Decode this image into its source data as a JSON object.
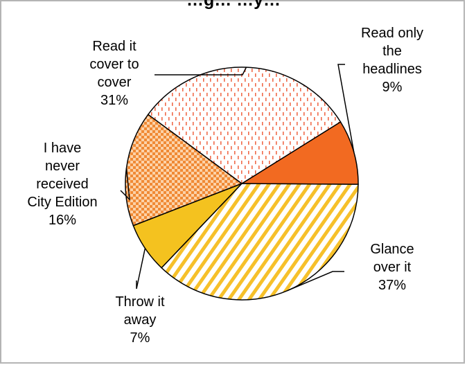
{
  "chart_data": {
    "type": "pie",
    "title": "…g…                                        …y…",
    "slices": [
      {
        "label": "Read only the headlines",
        "lines": [
          "Read only",
          "the",
          "headlines"
        ],
        "pct_text": "9%",
        "value": 9,
        "color": "#f26a21",
        "pattern": "solid"
      },
      {
        "label": "Glance over it",
        "lines": [
          "Glance",
          "over it"
        ],
        "pct_text": "37%",
        "value": 37,
        "color": "#f6c02a",
        "pattern": "diagonal-stripes"
      },
      {
        "label": "Throw it away",
        "lines": [
          "Throw it",
          "away"
        ],
        "pct_text": "7%",
        "value": 7,
        "color": "#f4c21f",
        "pattern": "solid"
      },
      {
        "label": "I have never received City Edition",
        "lines": [
          "I have",
          "never",
          "received",
          "City Edition"
        ],
        "pct_text": "16%",
        "value": 16,
        "color": "#f79a45",
        "pattern": "checkerboard"
      },
      {
        "label": "Read it cover to cover",
        "lines": [
          "Read it",
          "cover to",
          "cover"
        ],
        "pct_text": "31%",
        "value": 31,
        "color": "#f28058",
        "pattern": "dotted-dashes"
      }
    ],
    "legend": "none"
  }
}
